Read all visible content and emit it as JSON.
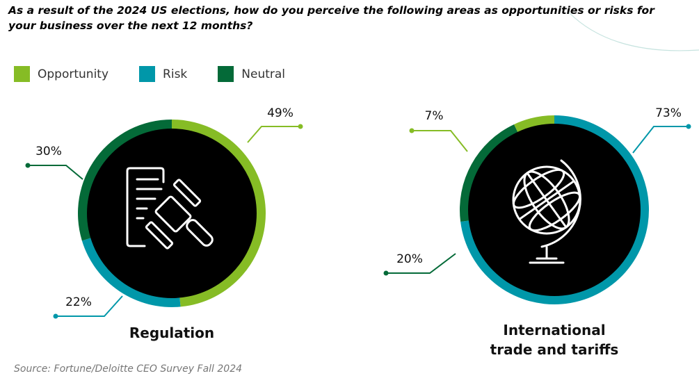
{
  "title": "As a result of the 2024 US elections, how do you perceive the following areas as opportunities or risks for your business over the next 12 months?",
  "legend": [
    {
      "label": "Opportunity",
      "color": "#86bc25"
    },
    {
      "label": "Risk",
      "color": "#0097a9"
    },
    {
      "label": "Neutral",
      "color": "#046a38"
    }
  ],
  "source": "Source: Fortune/Deloitte CEO Survey Fall 2024",
  "chart_data": [
    {
      "type": "pie",
      "title": "Regulation",
      "icon": "gavel-document-icon",
      "slices": [
        {
          "name": "Opportunity",
          "value": 49,
          "label": "49%",
          "color": "#86bc25"
        },
        {
          "name": "Risk",
          "value": 22,
          "label": "22%",
          "color": "#0097a9"
        },
        {
          "name": "Neutral",
          "value": 30,
          "label": "30%",
          "color": "#046a38"
        }
      ]
    },
    {
      "type": "pie",
      "title_lines": [
        "International",
        "trade and tariffs"
      ],
      "icon": "globe-icon",
      "slices": [
        {
          "name": "Opportunity",
          "value": 7,
          "label": "7%",
          "color": "#86bc25"
        },
        {
          "name": "Risk",
          "value": 73,
          "label": "73%",
          "color": "#0097a9"
        },
        {
          "name": "Neutral",
          "value": 20,
          "label": "20%",
          "color": "#046a38"
        }
      ]
    }
  ]
}
